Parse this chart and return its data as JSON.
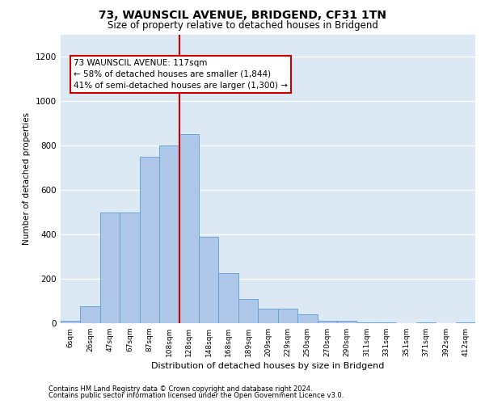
{
  "title1": "73, WAUNSCIL AVENUE, BRIDGEND, CF31 1TN",
  "title2": "Size of property relative to detached houses in Bridgend",
  "xlabel": "Distribution of detached houses by size in Bridgend",
  "ylabel": "Number of detached properties",
  "bins": [
    "6sqm",
    "26sqm",
    "47sqm",
    "67sqm",
    "87sqm",
    "108sqm",
    "128sqm",
    "148sqm",
    "168sqm",
    "189sqm",
    "209sqm",
    "229sqm",
    "250sqm",
    "270sqm",
    "290sqm",
    "311sqm",
    "331sqm",
    "351sqm",
    "371sqm",
    "392sqm",
    "412sqm"
  ],
  "values": [
    10,
    75,
    500,
    500,
    750,
    800,
    850,
    390,
    225,
    110,
    65,
    65,
    40,
    10,
    10,
    5,
    5,
    0,
    5,
    0,
    5
  ],
  "bar_color": "#aec6e8",
  "bar_edge_color": "#5a9fd4",
  "property_bin_index": 6,
  "vline_x_offset": 0.0,
  "vline_color": "#cc0000",
  "annotation_text": "73 WAUNSCIL AVENUE: 117sqm\n← 58% of detached houses are smaller (1,844)\n41% of semi-detached houses are larger (1,300) →",
  "annotation_box_color": "#ffffff",
  "annotation_box_edge": "#cc0000",
  "ylim": [
    0,
    1300
  ],
  "yticks": [
    0,
    200,
    400,
    600,
    800,
    1000,
    1200
  ],
  "footer1": "Contains HM Land Registry data © Crown copyright and database right 2024.",
  "footer2": "Contains public sector information licensed under the Open Government Licence v3.0.",
  "bg_color": "#dce9f5",
  "fig_bg_color": "#ffffff"
}
